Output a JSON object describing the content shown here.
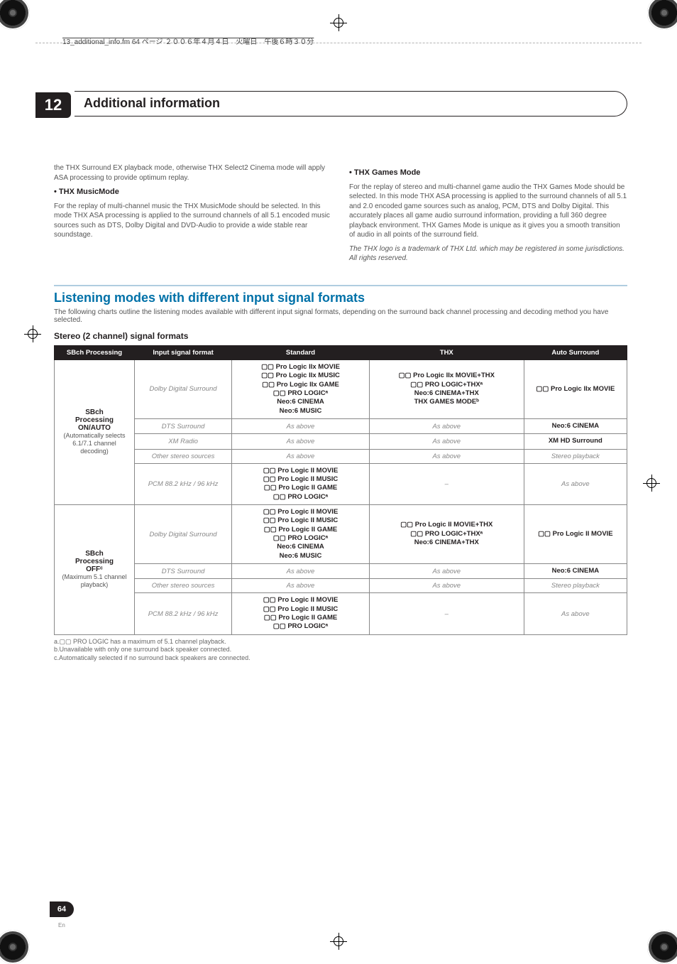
{
  "meta": {
    "filepath": "13_additional_info.fm 64 ページ ２００６年４月４日　火曜日　午後６時３０分"
  },
  "chapter": {
    "number": "12",
    "title": "Additional information"
  },
  "page": {
    "number": "64",
    "lang": "En"
  },
  "leftCol": {
    "p1": "the THX Surround EX playback mode, otherwise THX Select2 Cinema mode will apply ASA processing to provide optimum replay.",
    "b1": "•   THX MusicMode",
    "p2": "For the replay of multi-channel music the THX MusicMode should be selected. In this mode THX ASA processing is applied to the surround channels of all 5.1 encoded music sources such as DTS, Dolby Digital and DVD-Audio to provide a wide stable rear soundstage."
  },
  "rightCol": {
    "b1": "•   THX Games Mode",
    "p1": "For the replay of stereo and multi-channel game audio the THX Games Mode should be selected. In this mode THX ASA processing is applied to the surround channels of all 5.1 and 2.0 encoded game sources such as analog, PCM, DTS and Dolby Digital. This accurately places all game audio surround information, providing a full 360 degree playback environment. THX Games Mode is unique as it gives you a smooth transition of audio in all points of the surround field.",
    "p2": "The THX logo is a trademark of THX Ltd. which may be registered in some jurisdictions. All rights reserved."
  },
  "section": {
    "title": "Listening modes with different input signal formats",
    "intro": "The following charts outline the listening modes available with different input signal formats, depending on the surround back channel processing and decoding method you have selected.",
    "sub": "Stereo (2 channel) signal formats"
  },
  "table": {
    "headers": [
      "SBch Processing",
      "Input signal format",
      "Standard",
      "THX",
      "Auto Surround"
    ],
    "rowGroups": [
      {
        "rowhead": {
          "l1": "SBch",
          "l2": "Processing",
          "l3": "ON/AUTO",
          "sub": "(Automatically selects 6.1/7.1 channel decoding)"
        },
        "rows": [
          {
            "input": "Dolby Digital Surround",
            "std": [
              "▢▢ Pro Logic IIx MOVIE",
              "▢▢ Pro Logic IIx MUSIC",
              "▢▢ Pro Logic IIx GAME",
              "▢▢ PRO LOGICᵃ",
              "Neo:6 CINEMA",
              "Neo:6 MUSIC"
            ],
            "thx": [
              "▢▢ Pro Logic IIx MOVIE+THX",
              "▢▢ PRO LOGIC+THXᵃ",
              "Neo:6 CINEMA+THX",
              "THX GAMES MODEᵇ"
            ],
            "auto": [
              "▢▢ Pro Logic IIx MOVIE"
            ]
          },
          {
            "input": "DTS Surround",
            "std_i": "As above",
            "thx_i": "As above",
            "auto": [
              "Neo:6 CINEMA"
            ]
          },
          {
            "input": "XM Radio",
            "std_i": "As above",
            "thx_i": "As above",
            "auto": [
              "XM HD Surround"
            ]
          },
          {
            "input": "Other stereo sources",
            "std_i": "As above",
            "thx_i": "As above",
            "auto_i": "Stereo playback"
          },
          {
            "input": "PCM 88.2 kHz / 96 kHz",
            "std": [
              "▢▢ Pro Logic II MOVIE",
              "▢▢ Pro Logic II MUSIC",
              "▢▢ Pro Logic II GAME",
              "▢▢ PRO LOGICᵃ"
            ],
            "thx_i": "–",
            "auto_i": "As above"
          }
        ]
      },
      {
        "rowhead": {
          "l1": "SBch",
          "l2": "Processing",
          "l3": "OFFᶜ",
          "sub": "(Maximum 5.1 channel playback)"
        },
        "rows": [
          {
            "input": "Dolby Digital Surround",
            "std": [
              "▢▢ Pro Logic II MOVIE",
              "▢▢ Pro Logic II MUSIC",
              "▢▢ Pro Logic II GAME",
              "▢▢ PRO LOGICᵃ",
              "Neo:6 CINEMA",
              "Neo:6 MUSIC"
            ],
            "thx": [
              "▢▢ Pro Logic II MOVIE+THX",
              "▢▢ PRO LOGIC+THXᵃ",
              "Neo:6 CINEMA+THX"
            ],
            "auto": [
              "▢▢ Pro Logic II MOVIE"
            ]
          },
          {
            "input": "DTS Surround",
            "std_i": "As above",
            "thx_i": "As above",
            "auto": [
              "Neo:6 CINEMA"
            ]
          },
          {
            "input": "Other stereo sources",
            "std_i": "As above",
            "thx_i": "As above",
            "auto_i": "Stereo playback"
          },
          {
            "input": "PCM 88.2 kHz / 96 kHz",
            "std": [
              "▢▢ Pro Logic II MOVIE",
              "▢▢ Pro Logic II MUSIC",
              "▢▢ Pro Logic II GAME",
              "▢▢ PRO LOGICᵃ"
            ],
            "thx_i": "–",
            "auto_i": "As above"
          }
        ]
      }
    ],
    "footnotes": {
      "a": "a.▢▢ PRO LOGIC has a maximum of 5.1 channel playback.",
      "b": "b.Unavailable with only one surround back speaker connected.",
      "c": "c.Automatically selected if no surround back speakers are connected."
    }
  }
}
